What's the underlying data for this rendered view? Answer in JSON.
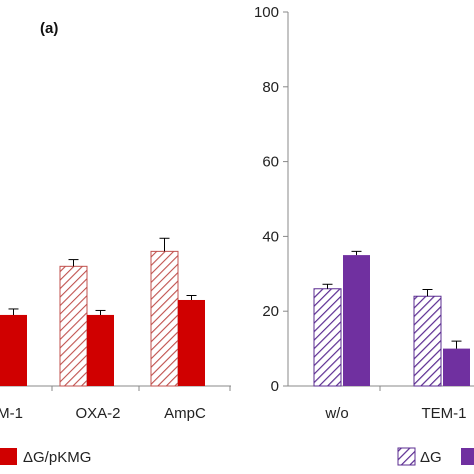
{
  "chart_data": [
    {
      "panel_label": "(a)",
      "type": "bar",
      "categories": [
        "M-1",
        "OXA-2",
        "AmpC"
      ],
      "series": [
        {
          "name": "",
          "pattern": "hatched",
          "color": "#c0504d",
          "values": [
            null,
            32,
            36
          ],
          "errors": [
            null,
            1.8,
            3.5
          ]
        },
        {
          "name": "ΔG/pKMG",
          "pattern": "solid",
          "color": "#d00000",
          "values": [
            19,
            19,
            23
          ],
          "errors": [
            1.6,
            1.2,
            1.2
          ]
        }
      ],
      "ylim": [
        0,
        100
      ],
      "legend_position": "bottom",
      "grid": false
    },
    {
      "type": "bar",
      "categories": [
        "w/o",
        "TEM-1"
      ],
      "series": [
        {
          "name": "ΔG",
          "pattern": "hatched",
          "color": "#5b2c91",
          "values": [
            26,
            24
          ],
          "errors": [
            1.2,
            1.8
          ]
        },
        {
          "name": "",
          "pattern": "solid",
          "color": "#7030a0",
          "values": [
            35,
            10
          ],
          "errors": [
            1.0,
            2.0
          ]
        }
      ],
      "yticks": [
        0,
        20,
        40,
        60,
        80,
        100
      ],
      "ylim": [
        0,
        100
      ],
      "legend_position": "bottom",
      "grid": false
    }
  ]
}
